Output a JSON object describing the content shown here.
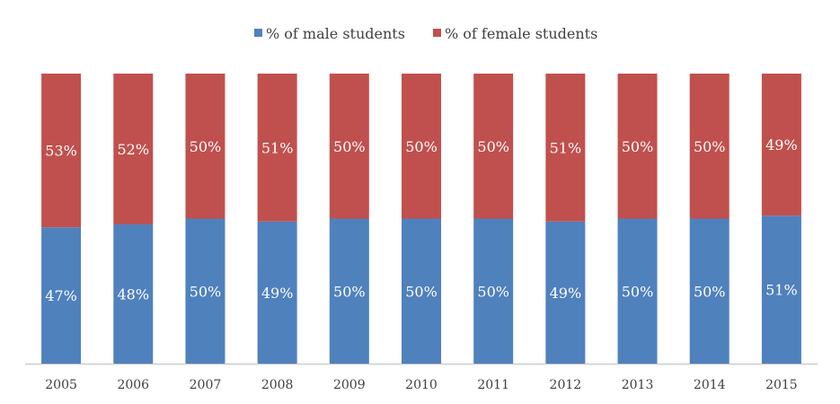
{
  "chart_data": {
    "type": "bar",
    "stacked": true,
    "normalized": true,
    "categories": [
      "2005",
      "2006",
      "2007",
      "2008",
      "2009",
      "2010",
      "2011",
      "2012",
      "2013",
      "2014",
      "2015"
    ],
    "series": [
      {
        "name": "% of male students",
        "color": "#4F81BD",
        "values": [
          47,
          48,
          50,
          49,
          50,
          50,
          50,
          49,
          50,
          50,
          51
        ],
        "labels": [
          "47%",
          "48%",
          "50%",
          "49%",
          "50%",
          "50%",
          "50%",
          "49%",
          "50%",
          "50%",
          "51%"
        ]
      },
      {
        "name": "% of female students",
        "color": "#C0504D",
        "values": [
          53,
          52,
          50,
          51,
          50,
          50,
          50,
          51,
          50,
          50,
          49
        ],
        "labels": [
          "53%",
          "52%",
          "50%",
          "51%",
          "50%",
          "50%",
          "50%",
          "51%",
          "50%",
          "50%",
          "49%"
        ]
      }
    ],
    "title": "",
    "xlabel": "",
    "ylabel": "",
    "ylim": [
      0,
      100
    ],
    "grid": false,
    "legend_position": "top"
  }
}
